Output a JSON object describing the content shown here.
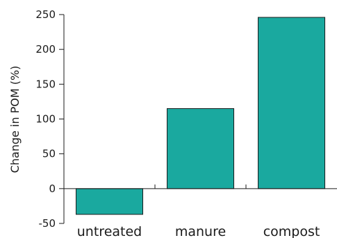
{
  "chart_data": {
    "type": "bar",
    "categories": [
      "untreated",
      "manure",
      "compost"
    ],
    "values": [
      -37,
      115,
      246
    ],
    "title": "",
    "xlabel": "",
    "ylabel": "Change in POM (%)",
    "ylim": [
      -50,
      250
    ],
    "yticks": [
      -50,
      0,
      50,
      100,
      150,
      200,
      250
    ],
    "grid": false,
    "colors": {
      "bar": "#1aa99f",
      "bar_edge": "#1a1a1a",
      "axis": "#1a1a1a"
    }
  }
}
